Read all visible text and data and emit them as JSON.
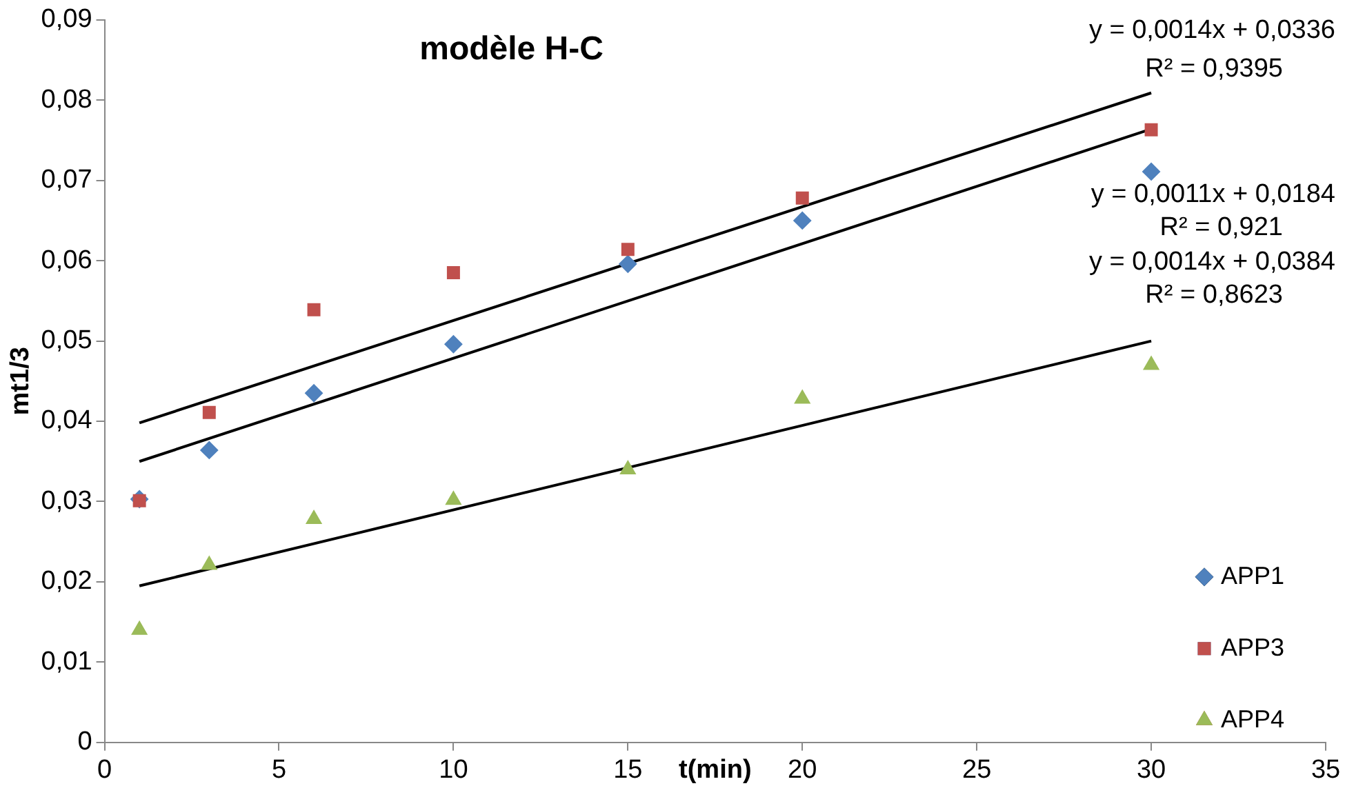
{
  "chart_data": {
    "type": "scatter",
    "title": "modèle H-C",
    "xlabel": "t(min)",
    "ylabel": "mt1/3",
    "x": [
      1,
      3,
      6,
      10,
      15,
      20,
      30
    ],
    "series": [
      {
        "name": "APP1",
        "color": "#4f81bd",
        "marker": "diamond",
        "values": [
          0.0303,
          0.0364,
          0.0435,
          0.0496,
          0.0596,
          0.065,
          0.0711
        ]
      },
      {
        "name": "APP3",
        "color": "#c0504d",
        "marker": "square",
        "values": [
          0.0301,
          0.0411,
          0.0539,
          0.0585,
          0.0614,
          0.0678,
          0.0763
        ]
      },
      {
        "name": "APP4",
        "color": "#9bbb59",
        "marker": "triangle",
        "values": [
          0.014,
          0.0221,
          0.0278,
          0.0302,
          0.034,
          0.0428,
          0.047
        ]
      },
      {
        "type": "line",
        "color": "#000000",
        "marker": "none",
        "values": [
          0.0398,
          null,
          null,
          null,
          null,
          null,
          0.0809
        ]
      },
      {
        "type": "line",
        "color": "#000000",
        "marker": "none",
        "values": [
          0.035,
          null,
          null,
          null,
          null,
          null,
          0.0764
        ]
      },
      {
        "type": "line",
        "color": "#000000",
        "marker": "none",
        "values": [
          0.0195,
          null,
          null,
          null,
          null,
          null,
          0.05
        ]
      }
    ],
    "annotations": [
      "y = 0,0014x + 0,0336",
      "R² = 0,9395",
      "y = 0,0011x + 0,0184",
      "R² = 0,921",
      "y = 0,0014x + 0,0384",
      "R² = 0,8623"
    ],
    "xlim": [
      0,
      35
    ],
    "xticks": [
      0,
      5,
      10,
      15,
      20,
      25,
      30,
      35
    ],
    "ylim": [
      0,
      0.09
    ],
    "yticks": [
      {
        "value": 0,
        "label": "0"
      },
      {
        "value": 0.01,
        "label": "0,01"
      },
      {
        "value": 0.02,
        "label": "0,02"
      },
      {
        "value": 0.03,
        "label": "0,03"
      },
      {
        "value": 0.04,
        "label": "0,04"
      },
      {
        "value": 0.05,
        "label": "0,05"
      },
      {
        "value": 0.06,
        "label": "0,06"
      },
      {
        "value": 0.07,
        "label": "0,07"
      },
      {
        "value": 0.08,
        "label": "0,08"
      },
      {
        "value": 0.09,
        "label": "0,09"
      }
    ],
    "grid": false,
    "legend": "right"
  }
}
